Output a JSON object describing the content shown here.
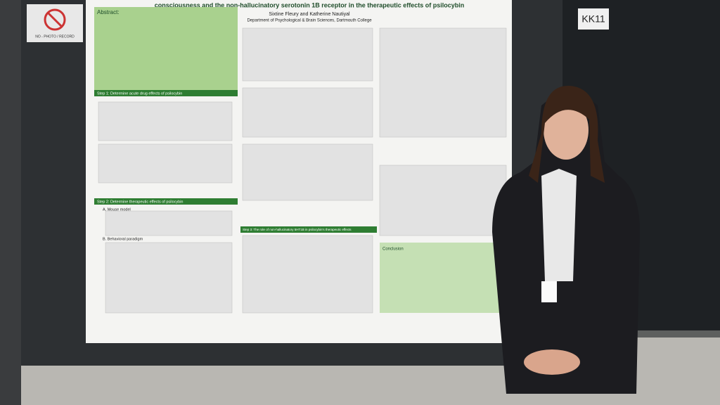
{
  "sign": {
    "room": "KK11",
    "notice": "NO - PHOTO / RECORD"
  },
  "poster": {
    "title": "consciousness and the non-hallucinatory serotonin 1B receptor in the therapeutic effects of psilocybin",
    "authors": "Sixtine Fleury and Katherine Nautiyal",
    "affiliation": "Department of Psychological & Brain Sciences, Dartmouth College",
    "abstract_heading": "Abstract:",
    "sections": [
      "Step 1: Determine acute drug effects of psilocybin",
      "Step 2: Determine therapeutic effects of psilocybin",
      "A. Mouse model",
      "B. Behavioral paradigm",
      "Step 3: The role of non-hallucinatory 5HT1B in psilocybin's therapeutic effects",
      "Conclusion"
    ]
  }
}
